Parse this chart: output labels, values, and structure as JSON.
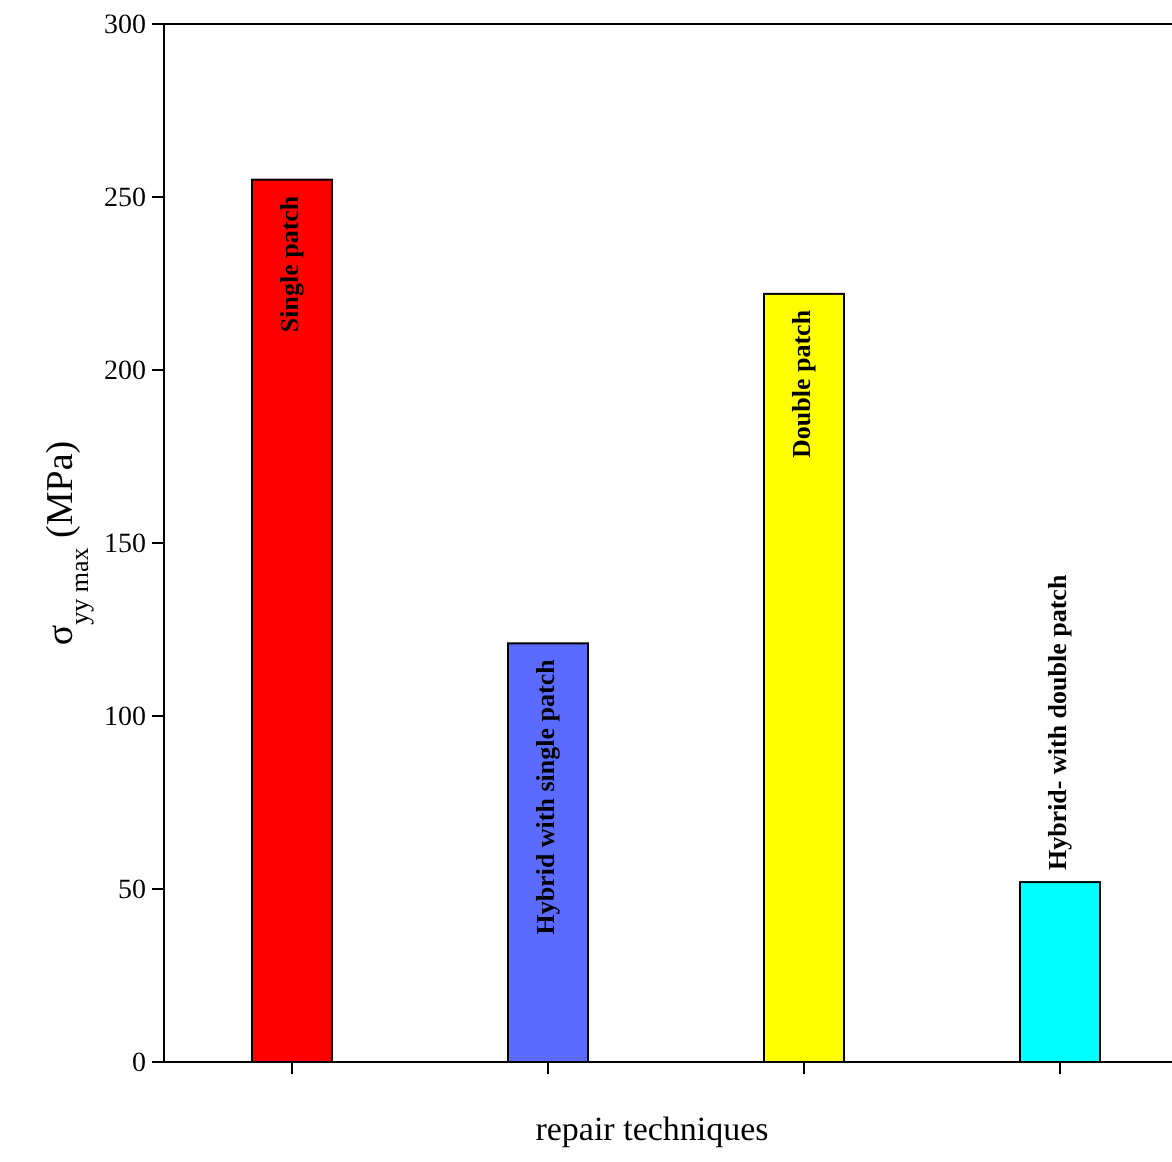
{
  "chart_data": {
    "type": "bar",
    "xlabel": "repair techniques",
    "ylabel": "σ$_{yy max}$ (MPa)",
    "categories": [
      "Single patch",
      "Hybrid with single patch",
      "Double patch",
      "Hybrid- with double patch"
    ],
    "values": [
      255,
      121,
      222,
      52
    ],
    "colors": [
      "#ff0000",
      "#5b6bff",
      "#ffff00",
      "#00ffff"
    ],
    "ylim": [
      0,
      300
    ],
    "yticks": [
      0,
      50,
      100,
      150,
      200,
      250,
      300
    ],
    "grid": false
  }
}
